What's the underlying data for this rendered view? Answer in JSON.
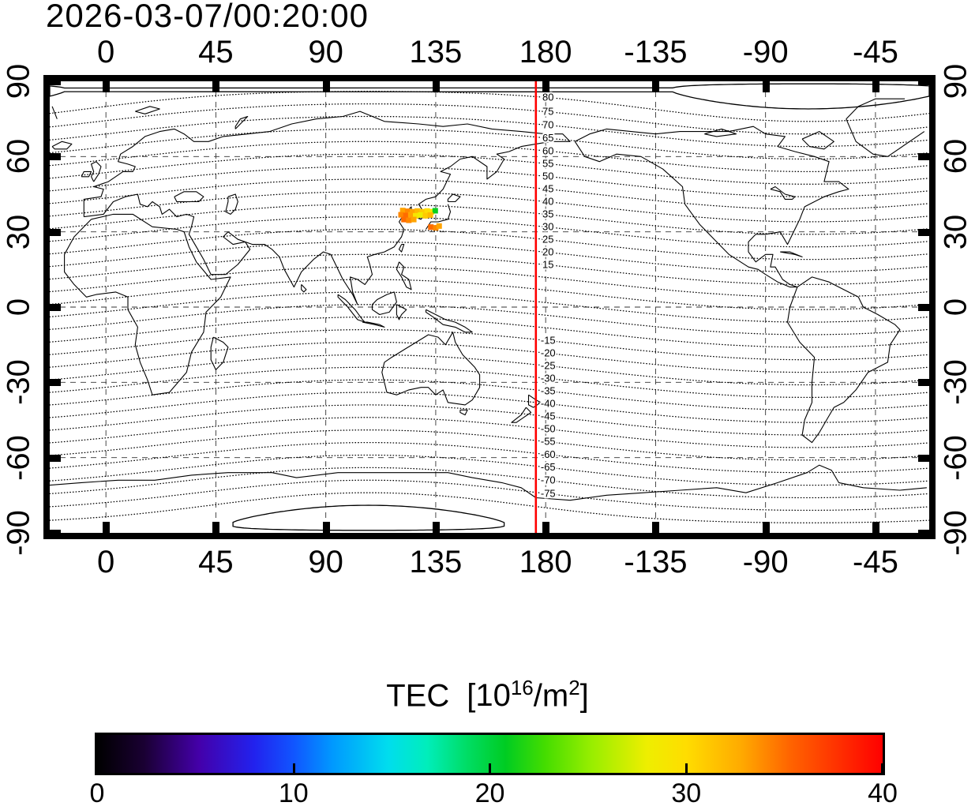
{
  "title": "2026-03-07/00:20:00",
  "axes": {
    "lon_tick_values": [
      0,
      45,
      90,
      135,
      180,
      -135,
      -90,
      -45
    ],
    "lon_tick_labels": [
      "0",
      "45",
      "90",
      "135",
      "180",
      "-135",
      "-90",
      "-45"
    ],
    "lat_tick_values": [
      90,
      60,
      30,
      0,
      -30,
      -60,
      -90
    ],
    "lat_tick_labels": [
      "90",
      "60",
      "30",
      "0",
      "-30",
      "-60",
      "-90"
    ]
  },
  "map": {
    "lon_left_edge": -23,
    "grid_lat_values": [
      60,
      30,
      0,
      -30,
      -60
    ],
    "red_meridian_lon": 176,
    "red_meridian_color": "#ff0000"
  },
  "contours": {
    "quantity": "geomagnetic latitude (deg)",
    "pole_lat": 84,
    "pole_lon": -72.6,
    "level_min": -85,
    "level_max": 85,
    "level_step": 5,
    "solid_abs_level": 85,
    "label_lon": 181,
    "labeled_levels": [
      80,
      75,
      70,
      65,
      60,
      55,
      50,
      45,
      40,
      35,
      30,
      25,
      20,
      15,
      -15,
      -20,
      -25,
      -30,
      -35,
      -40,
      -45,
      -50,
      -55,
      -60,
      -65,
      -70,
      -75
    ]
  },
  "colorbar": {
    "label": "TEC",
    "open": "[10",
    "sup1": "16",
    "mid": "/m",
    "sup2": "2",
    "close": "]",
    "min": 0,
    "max": 40,
    "tick_values": [
      0,
      10,
      20,
      30,
      40
    ],
    "tick_labels": [
      "0",
      "10",
      "20",
      "30",
      "40"
    ],
    "stops": [
      [
        0.0,
        "#000000"
      ],
      [
        0.06,
        "#1a0033"
      ],
      [
        0.13,
        "#4400aa"
      ],
      [
        0.2,
        "#2222ee"
      ],
      [
        0.25,
        "#1155ff"
      ],
      [
        0.3,
        "#0099ff"
      ],
      [
        0.37,
        "#00ddee"
      ],
      [
        0.42,
        "#00eebb"
      ],
      [
        0.47,
        "#00dd66"
      ],
      [
        0.52,
        "#00cc22"
      ],
      [
        0.57,
        "#44dd00"
      ],
      [
        0.63,
        "#99ee00"
      ],
      [
        0.7,
        "#eeee00"
      ],
      [
        0.75,
        "#ffdd00"
      ],
      [
        0.82,
        "#ffaa00"
      ],
      [
        0.88,
        "#ff6600"
      ],
      [
        0.94,
        "#ff3300"
      ],
      [
        1.0,
        "#ff0000"
      ]
    ]
  },
  "chart_data": {
    "type": "map-contour-scatter",
    "title": "2026-03-07/00:20:00",
    "projection": "equirectangular",
    "x_ticks_longitude_deg": [
      0,
      45,
      90,
      135,
      180,
      -135,
      -90,
      -45
    ],
    "y_ticks_latitude_deg": [
      90,
      60,
      30,
      0,
      -30,
      -60,
      -90
    ],
    "contour_quantity": "geomagnetic latitude",
    "contour_labeled_levels_deg": [
      80,
      75,
      70,
      65,
      60,
      55,
      50,
      45,
      40,
      35,
      30,
      25,
      20,
      15,
      -15,
      -20,
      -25,
      -30,
      -35,
      -40,
      -45,
      -50,
      -55,
      -60,
      -65,
      -70,
      -75
    ],
    "red_meridian_longitude_deg": 176,
    "colorbar": {
      "label": "TEC [10^16/m^2]",
      "min": 0,
      "max": 40,
      "ticks": [
        0,
        10,
        20,
        30,
        40
      ]
    },
    "tec_points": [
      {
        "lon": 121.5,
        "lat": 38.5,
        "tec": 33
      },
      {
        "lon": 123.5,
        "lat": 38.2,
        "tec": 34
      },
      {
        "lon": 125.5,
        "lat": 38.0,
        "tec": 33
      },
      {
        "lon": 127.5,
        "lat": 38.3,
        "tec": 32
      },
      {
        "lon": 129.5,
        "lat": 38.0,
        "tec": 31
      },
      {
        "lon": 131.5,
        "lat": 38.3,
        "tec": 30
      },
      {
        "lon": 133.3,
        "lat": 38.0,
        "tec": 29
      },
      {
        "lon": 134.8,
        "lat": 38.4,
        "tec": 21
      },
      {
        "lon": 120.8,
        "lat": 36.8,
        "tec": 34
      },
      {
        "lon": 122.8,
        "lat": 36.5,
        "tec": 35
      },
      {
        "lon": 124.8,
        "lat": 36.8,
        "tec": 33
      },
      {
        "lon": 126.8,
        "lat": 36.4,
        "tec": 29
      },
      {
        "lon": 128.8,
        "lat": 36.7,
        "tec": 28
      },
      {
        "lon": 130.8,
        "lat": 36.4,
        "tec": 31
      },
      {
        "lon": 132.8,
        "lat": 36.7,
        "tec": 32
      },
      {
        "lon": 122.0,
        "lat": 34.9,
        "tec": 35
      },
      {
        "lon": 124.0,
        "lat": 34.6,
        "tec": 34
      },
      {
        "lon": 126.0,
        "lat": 34.9,
        "tec": 33
      },
      {
        "lon": 133.0,
        "lat": 31.9,
        "tec": 35
      },
      {
        "lon": 135.0,
        "lat": 31.6,
        "tec": 34
      },
      {
        "lon": 136.4,
        "lat": 32.3,
        "tec": 33
      }
    ]
  }
}
